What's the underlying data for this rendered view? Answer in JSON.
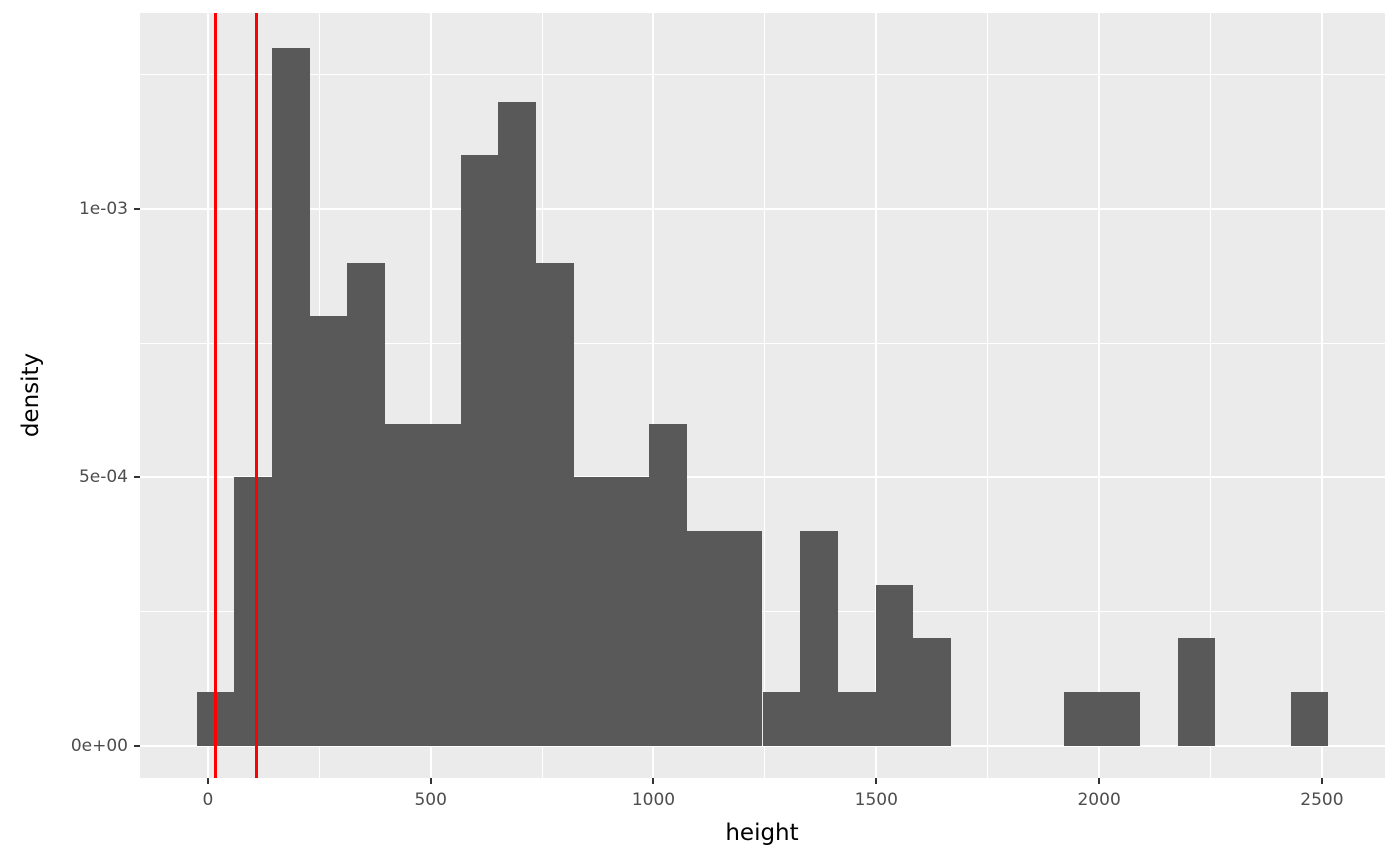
{
  "chart_data": {
    "type": "bar",
    "subtype": "histogram-density",
    "title": "",
    "xlabel": "height",
    "ylabel": "density",
    "legend": "none",
    "grid": "on",
    "x_axis": {
      "range": [
        -152.3,
        2641.5
      ],
      "breaks": [
        0,
        500,
        1000,
        1500,
        2000,
        2500
      ],
      "labels": [
        "0",
        "500",
        "1000",
        "1500",
        "2000",
        "2500"
      ],
      "minor_breaks": [
        250,
        750,
        1250,
        1750,
        2250
      ]
    },
    "y_axis": {
      "range": [
        -6e-05,
        0.001365
      ],
      "breaks": [
        0,
        0.0005,
        0.001
      ],
      "labels": [
        "0e+00",
        "5e-04",
        "1e-03"
      ],
      "minor_breaks": [
        0.00025,
        0.00075,
        0.00125
      ]
    },
    "bins": [
      {
        "x0": -25.3,
        "x1": 59.4,
        "density": 0.0001
      },
      {
        "x0": 59.4,
        "x1": 144.0,
        "density": 0.0005
      },
      {
        "x0": 144.0,
        "x1": 228.7,
        "density": 0.0013
      },
      {
        "x0": 228.7,
        "x1": 313.3,
        "density": 0.0008
      },
      {
        "x0": 313.3,
        "x1": 398.0,
        "density": 0.0009
      },
      {
        "x0": 398.0,
        "x1": 482.7,
        "density": 0.0006
      },
      {
        "x0": 482.7,
        "x1": 567.3,
        "density": 0.0006
      },
      {
        "x0": 567.3,
        "x1": 652.0,
        "density": 0.0011
      },
      {
        "x0": 652.0,
        "x1": 736.6,
        "density": 0.0012
      },
      {
        "x0": 736.6,
        "x1": 821.3,
        "density": 0.0009
      },
      {
        "x0": 821.3,
        "x1": 906.0,
        "density": 0.0005
      },
      {
        "x0": 906.0,
        "x1": 990.6,
        "density": 0.0005
      },
      {
        "x0": 990.6,
        "x1": 1075.3,
        "density": 0.0006
      },
      {
        "x0": 1075.3,
        "x1": 1159.9,
        "density": 0.0004
      },
      {
        "x0": 1159.9,
        "x1": 1244.6,
        "density": 0.0004
      },
      {
        "x0": 1244.6,
        "x1": 1329.3,
        "density": 0.0001
      },
      {
        "x0": 1329.3,
        "x1": 1413.9,
        "density": 0.0004
      },
      {
        "x0": 1413.9,
        "x1": 1498.6,
        "density": 0.0001
      },
      {
        "x0": 1498.6,
        "x1": 1583.2,
        "density": 0.0003
      },
      {
        "x0": 1583.2,
        "x1": 1667.9,
        "density": 0.0002
      },
      {
        "x0": 1667.9,
        "x1": 1752.6,
        "density": 0
      },
      {
        "x0": 1752.6,
        "x1": 1837.2,
        "density": 0
      },
      {
        "x0": 1837.2,
        "x1": 1921.9,
        "density": 0
      },
      {
        "x0": 1921.9,
        "x1": 2006.5,
        "density": 0.0001
      },
      {
        "x0": 2006.5,
        "x1": 2091.2,
        "density": 0.0001
      },
      {
        "x0": 2091.2,
        "x1": 2175.9,
        "density": 0
      },
      {
        "x0": 2175.9,
        "x1": 2260.5,
        "density": 0.0002
      },
      {
        "x0": 2260.5,
        "x1": 2345.2,
        "density": 0
      },
      {
        "x0": 2345.2,
        "x1": 2429.8,
        "density": 0
      },
      {
        "x0": 2429.8,
        "x1": 2514.5,
        "density": 0.0001
      }
    ],
    "vlines": [
      18,
      110
    ],
    "colors": {
      "bar": "#595959",
      "panel_background": "#EBEBEB",
      "gridline": "#FFFFFF",
      "vline": "#FF0000",
      "tick_text": "#4D4D4D",
      "axis_tick": "#333333",
      "title_text": "#000000",
      "figure_background": "#FFFFFF"
    }
  }
}
